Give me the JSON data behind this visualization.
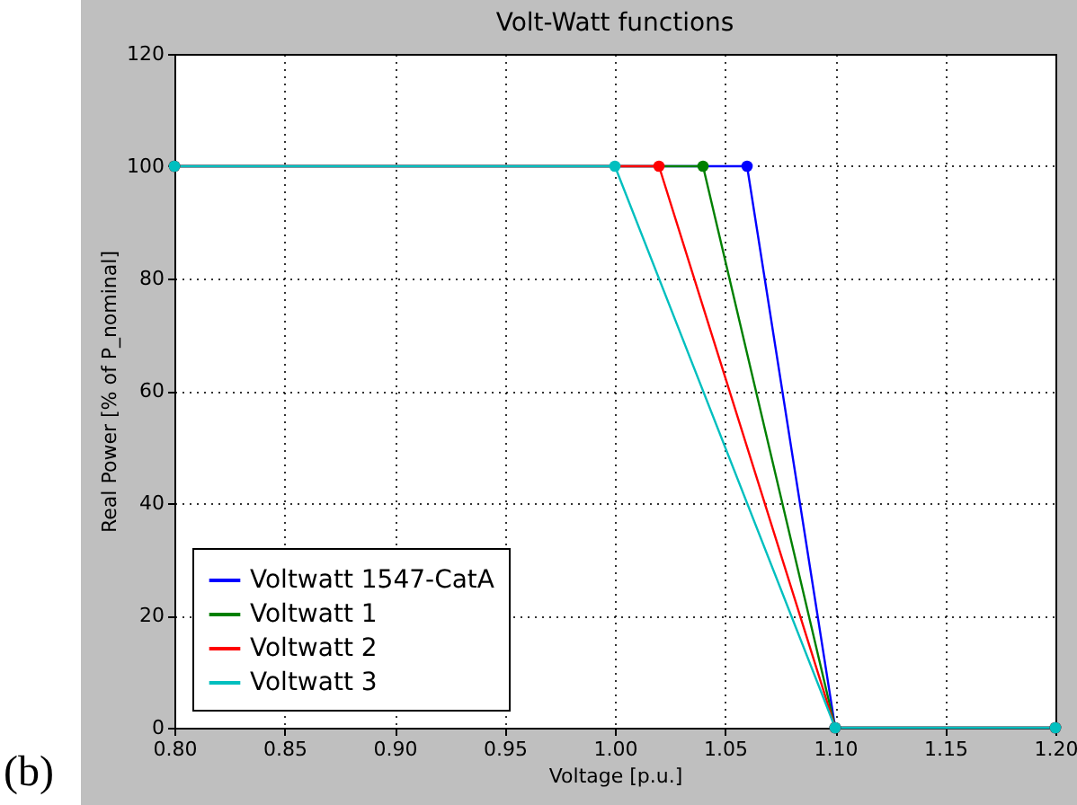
{
  "chart_data": {
    "type": "line",
    "title": "Volt-Watt functions",
    "xlabel": "Voltage [p.u.]",
    "ylabel": "Real Power [% of P_nominal]",
    "series": [
      {
        "name": "Voltwatt 1547-CatA",
        "color": "#0000ff",
        "x": [
          0.8,
          1.06,
          1.1,
          1.2
        ],
        "values": [
          100,
          100,
          0,
          0
        ]
      },
      {
        "name": "Voltwatt 1",
        "color": "#008000",
        "x": [
          0.8,
          1.04,
          1.1,
          1.2
        ],
        "values": [
          100,
          100,
          0,
          0
        ]
      },
      {
        "name": "Voltwatt 2",
        "color": "#ff0000",
        "x": [
          0.8,
          1.02,
          1.1,
          1.2
        ],
        "values": [
          100,
          100,
          0,
          0
        ]
      },
      {
        "name": "Voltwatt 3",
        "color": "#00bfbf",
        "x": [
          0.8,
          1.0,
          1.1,
          1.2
        ],
        "values": [
          100,
          100,
          0,
          0
        ]
      }
    ],
    "xlim": [
      0.8,
      1.2
    ],
    "xticks": [
      {
        "value": 0.8,
        "label": "0.80"
      },
      {
        "value": 0.85,
        "label": "0.85"
      },
      {
        "value": 0.9,
        "label": "0.90"
      },
      {
        "value": 0.95,
        "label": "0.95"
      },
      {
        "value": 1.0,
        "label": "1.00"
      },
      {
        "value": 1.05,
        "label": "1.05"
      },
      {
        "value": 1.1,
        "label": "1.10"
      },
      {
        "value": 1.15,
        "label": "1.15"
      },
      {
        "value": 1.2,
        "label": "1.20"
      }
    ],
    "ylim": [
      0,
      120
    ],
    "yticks": [
      0,
      20,
      40,
      60,
      80,
      100,
      120
    ],
    "grid": true,
    "legend": "bottom left",
    "marker": "circle",
    "line_style": "solid",
    "annotations": [
      "(b)"
    ]
  }
}
